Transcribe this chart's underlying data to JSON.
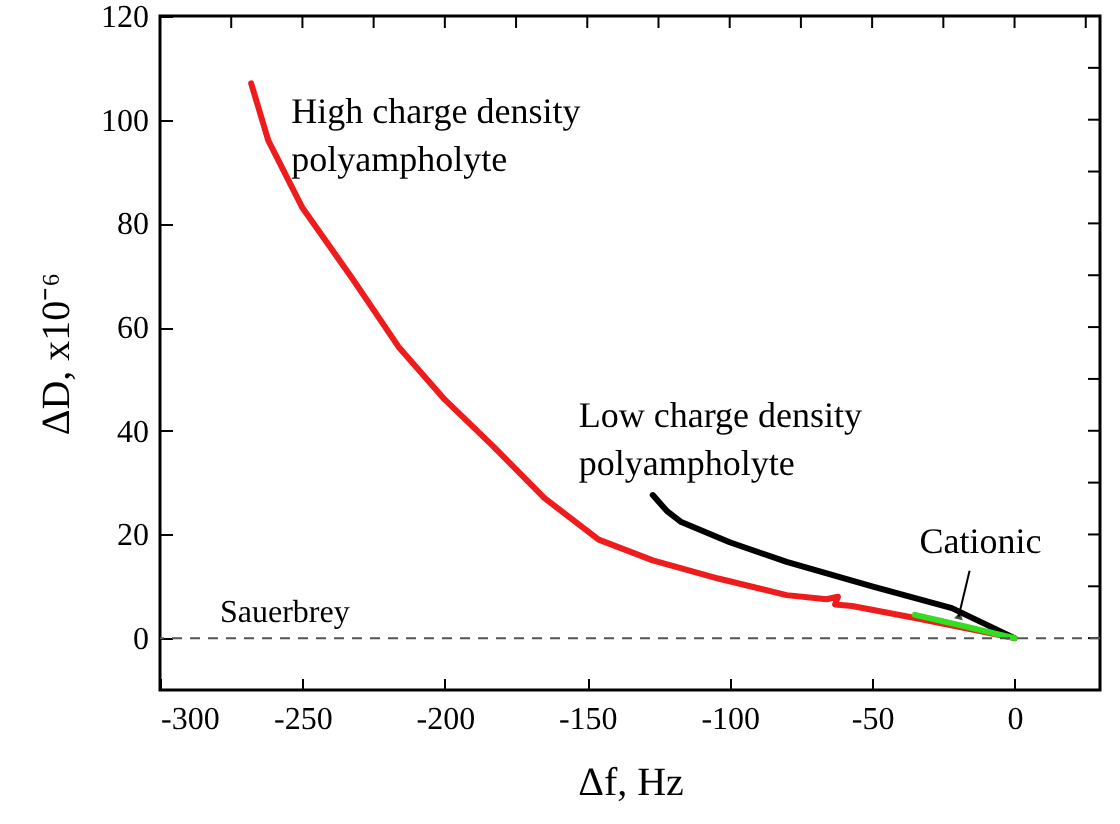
{
  "chart_data": {
    "type": "line",
    "xlabel": "Δf, Hz",
    "ylabel": "ΔD, x10⁻⁶",
    "xlim": [
      -300,
      30
    ],
    "ylim": [
      -10,
      120
    ],
    "xticks": [
      -300,
      {
        "value": -275,
        "label": null
      },
      -250,
      {
        "value": -225,
        "label": null
      },
      -200,
      {
        "value": -175,
        "label": null
      },
      -150,
      {
        "value": -125,
        "label": null
      },
      -100,
      {
        "value": -75,
        "label": null
      },
      -50,
      {
        "value": -25,
        "label": null
      },
      0,
      {
        "value": 25,
        "label": null
      }
    ],
    "yticks": [
      0,
      {
        "value": 10,
        "label": null
      },
      20,
      {
        "value": 30,
        "label": null
      },
      40,
      {
        "value": 50,
        "label": null
      },
      60,
      {
        "value": 70,
        "label": null
      },
      80,
      {
        "value": 90,
        "label": null
      },
      100,
      {
        "value": 110,
        "label": null
      },
      120
    ],
    "grid": false,
    "line_style": "solid",
    "marker": "none",
    "ref_lines": [
      {
        "axis": "y",
        "value": 0,
        "label": "Sauerbrey",
        "color": "#555555",
        "line_style": "dashed"
      }
    ],
    "series": [
      {
        "name": "High charge density polyampholyte",
        "color": "#ee1c1c",
        "x": [
          -268,
          -262,
          -250,
          -232,
          -216,
          -200,
          -183,
          -165,
          -146,
          -127,
          -104,
          -80,
          -66,
          -62,
          -63,
          -57,
          -34,
          0
        ],
        "values": [
          107,
          96,
          83,
          69,
          56,
          46,
          37,
          27,
          19,
          15,
          11.5,
          8.3,
          7.5,
          8,
          6.5,
          6.2,
          3.8,
          0
        ]
      },
      {
        "name": "Low charge density polyampholyte",
        "color": "#000000",
        "x": [
          -127,
          -122,
          -117,
          -100,
          -80,
          -50,
          -22,
          0
        ],
        "values": [
          27.6,
          24.5,
          22.4,
          18.5,
          14.7,
          10,
          5.8,
          0
        ]
      },
      {
        "color": "#33dd22",
        "x": [
          -35,
          -20,
          0
        ],
        "values": [
          4.5,
          2.6,
          0
        ]
      }
    ],
    "annotations": [
      {
        "text": "Cationic",
        "x": -20,
        "y": 2.6
      }
    ]
  }
}
